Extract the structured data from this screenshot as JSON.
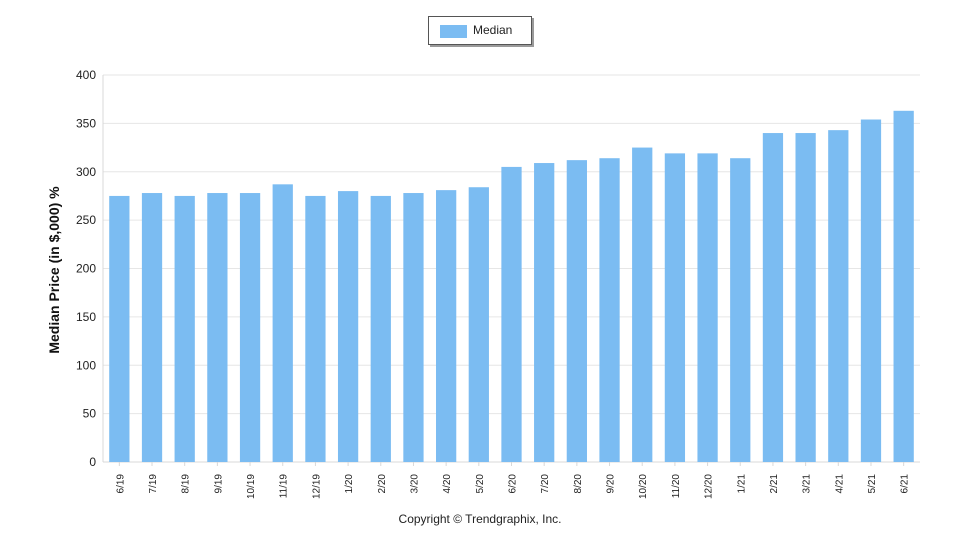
{
  "legend": {
    "label": "Median",
    "color": "#7bbcf2"
  },
  "footer": {
    "copyright": "Copyright © Trendgraphix, Inc."
  },
  "chart_data": {
    "type": "bar",
    "ylabel": "Median Price (in $,000) %",
    "xlabel": "",
    "ylim": [
      0,
      400
    ],
    "yticks": [
      0,
      50,
      100,
      150,
      200,
      250,
      300,
      350,
      400
    ],
    "grid": true,
    "legend_position": "top-center",
    "categories": [
      "6/19",
      "7/19",
      "8/19",
      "9/19",
      "10/19",
      "11/19",
      "12/19",
      "1/20",
      "2/20",
      "3/20",
      "4/20",
      "5/20",
      "6/20",
      "7/20",
      "8/20",
      "9/20",
      "10/20",
      "11/20",
      "12/20",
      "1/21",
      "2/21",
      "3/21",
      "4/21",
      "5/21",
      "6/21"
    ],
    "series": [
      {
        "name": "Median",
        "values": [
          275,
          278,
          275,
          278,
          278,
          287,
          275,
          280,
          275,
          278,
          281,
          284,
          305,
          309,
          312,
          314,
          325,
          319,
          319,
          314,
          340,
          340,
          343,
          354,
          363
        ]
      }
    ]
  }
}
